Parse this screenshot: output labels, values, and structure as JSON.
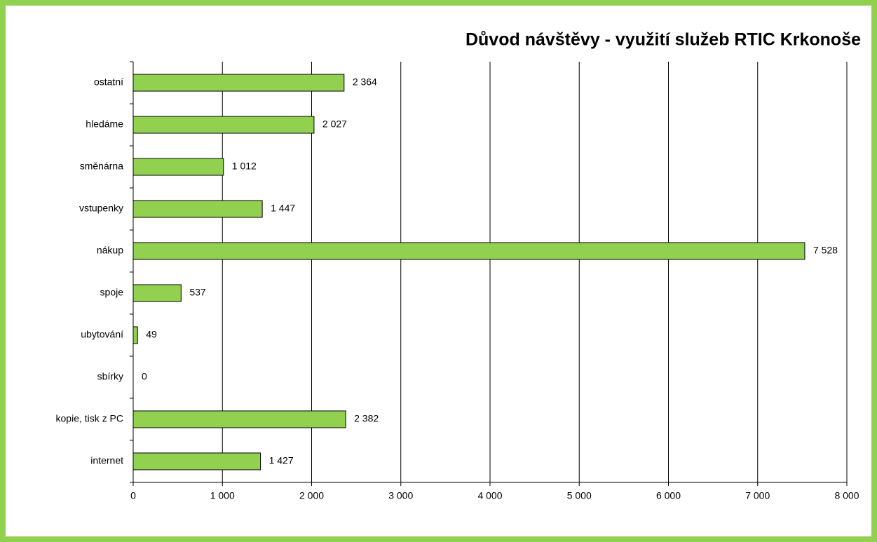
{
  "chart_data": {
    "type": "bar",
    "orientation": "horizontal",
    "title": "Důvod návštěvy - využití služeb RTIC Krkonoše",
    "categories": [
      "ostatní",
      "hledáme",
      "směnárna",
      "vstupenky",
      "nákup",
      "spoje",
      "ubytování",
      "sbírky",
      "kopie, tisk z PC",
      "internet"
    ],
    "values": [
      2364,
      2027,
      1012,
      1447,
      7528,
      537,
      49,
      0,
      2382,
      1427
    ],
    "value_labels": [
      "2 364",
      "2 027",
      "1 012",
      "1 447",
      "7 528",
      "537",
      "49",
      "0",
      "2 382",
      "1 427"
    ],
    "color": "#92d050",
    "xlim": [
      0,
      8000
    ],
    "xticks": [
      0,
      {
        "value": 1000,
        "label": "1 000"
      },
      {
        "value": 2000,
        "label": "2 000"
      },
      {
        "value": 3000,
        "label": "3 000"
      },
      {
        "value": 4000,
        "label": "4 000"
      },
      {
        "value": 5000,
        "label": "5 000"
      },
      {
        "value": 6000,
        "label": "6 000"
      },
      {
        "value": 7000,
        "label": "7 000"
      },
      {
        "value": 8000,
        "label": "8 000"
      }
    ],
    "grid": true
  }
}
